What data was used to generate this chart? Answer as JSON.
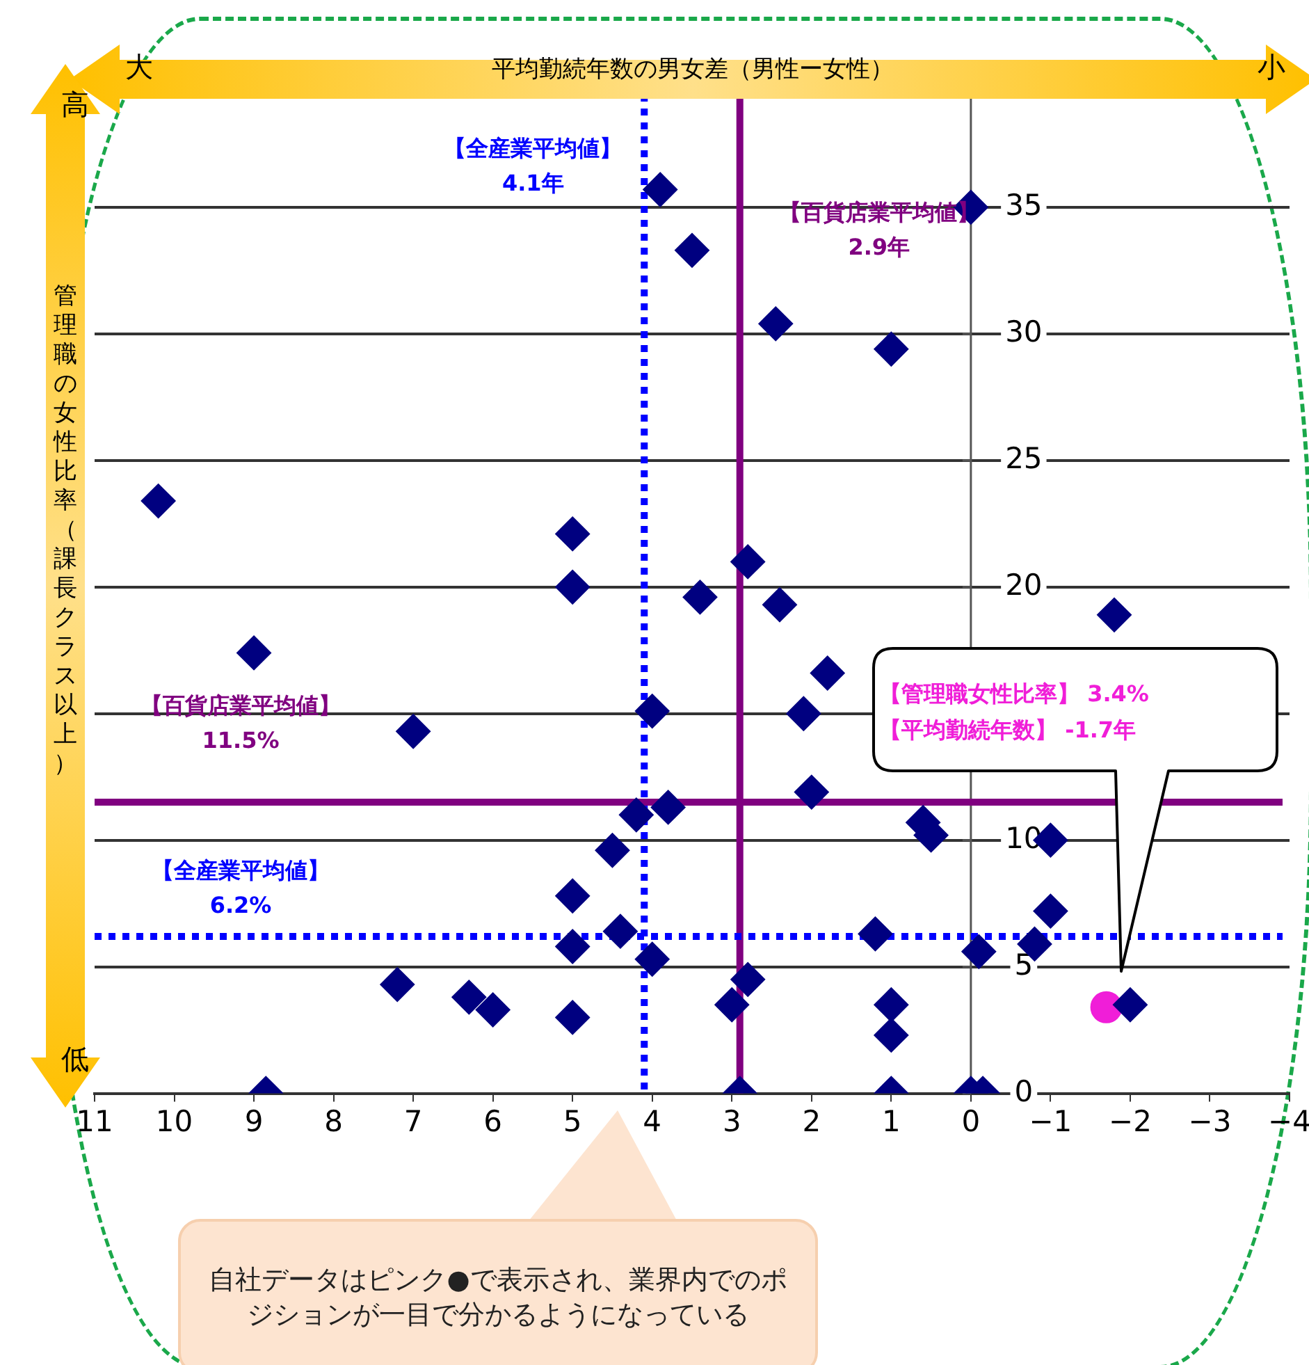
{
  "chart_data": {
    "type": "scatter",
    "xlabel": "平均勤続年数の男女差（男性ー女性）",
    "ylabel": "管理職の女性比率（課長クラス以上）",
    "xlim": [
      11,
      -4
    ],
    "xticks": [
      11,
      10,
      9,
      8,
      7,
      6,
      5,
      4,
      3,
      2,
      1,
      0,
      {
        "value": -1,
        "label": "−1"
      },
      {
        "value": -2,
        "label": "−2"
      },
      {
        "value": -3,
        "label": "−3"
      },
      {
        "value": -4,
        "label": "−4"
      }
    ],
    "ylim": [
      0,
      40
    ],
    "yticks": [
      0,
      5,
      10,
      {
        "value": 15,
        "label": null
      },
      20,
      25,
      30,
      35
    ],
    "grid": "y",
    "legend": false,
    "series": [
      {
        "color": "#000080",
        "marker": "diamond",
        "x": [
          10.2,
          9.0,
          7.0,
          5.0,
          5.0,
          3.9,
          3.5,
          2.45,
          1.0,
          0,
          2.8,
          3.4,
          2.4,
          -1.8,
          1.8,
          2.1,
          4.0,
          2.0,
          4.2,
          3.8,
          0.6,
          0.5,
          -1.0,
          -1.0,
          -0.8,
          -0.1,
          1.2,
          2.8,
          3.0,
          1.0,
          1.0,
          -2.0,
          2.9,
          1.0,
          0,
          -0.15,
          4.0,
          4.5,
          5.0,
          4.4,
          5.0,
          7.2,
          6.3,
          6.0,
          5.0,
          8.85
        ],
        "values": [
          23.4,
          17.4,
          14.3,
          22.1,
          20.0,
          35.7,
          33.3,
          30.4,
          29.4,
          35.0,
          21.0,
          19.6,
          19.3,
          18.9,
          16.6,
          15.0,
          15.1,
          11.9,
          11.0,
          11.3,
          10.7,
          10.2,
          10.0,
          7.2,
          5.9,
          5.6,
          6.3,
          4.5,
          3.5,
          3.5,
          2.3,
          3.5,
          0,
          0,
          0,
          0,
          5.3,
          9.6,
          7.8,
          6.4,
          5.8,
          4.3,
          3.8,
          3.3,
          3.0,
          0
        ]
      },
      {
        "color": "#f01ed8",
        "marker": "circle",
        "x": [
          -1.7
        ],
        "values": [
          3.4
        ]
      }
    ],
    "ref_lines": [
      {
        "axis": "x",
        "value": 4.1,
        "label": "【全産業平均値】 4.1年",
        "color": "#0000ff",
        "line_style": "dotted"
      },
      {
        "axis": "x",
        "value": 2.9,
        "label": "【百貨店業平均値】 2.9年",
        "color": "#800080",
        "line_style": "solid"
      },
      {
        "axis": "y",
        "value": 11.5,
        "label": "【百貨店業平均値】 11.5%",
        "color": "#800080",
        "line_style": "solid"
      },
      {
        "axis": "y",
        "value": 6.2,
        "label": "【全産業平均値】 6.2%",
        "color": "#0000ff",
        "line_style": "dotted"
      }
    ],
    "annotations": [
      "大",
      "小",
      "高",
      "低",
      "自社データはピンク●で表示され、業界内でのポジションが一目で分かるようになっている",
      "【管理職女性比率】 3.4%",
      "【平均勤続年数】 -1.7年"
    ]
  }
}
